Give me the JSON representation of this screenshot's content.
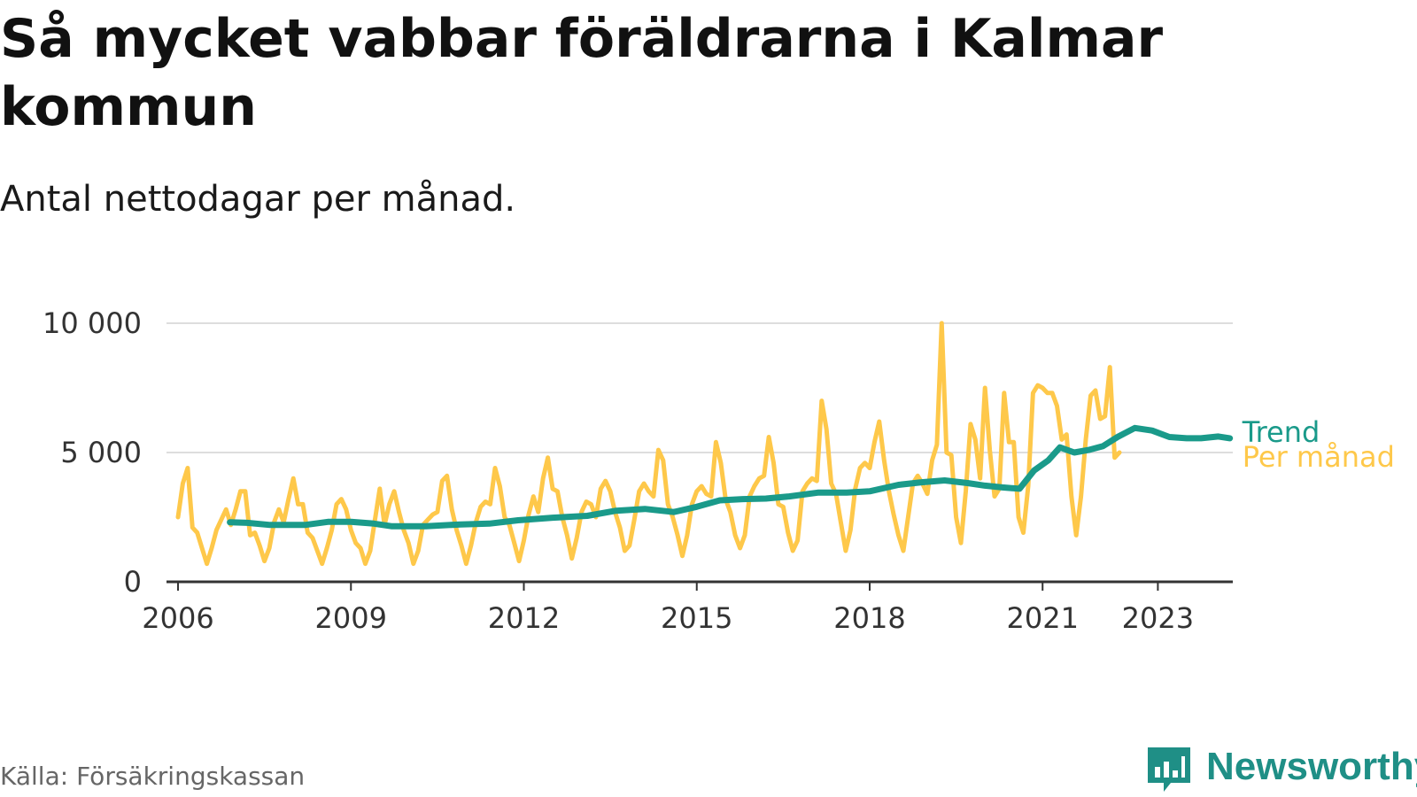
{
  "title": "Så mycket vabbar föräldrarna i Kalmar kommun",
  "subtitle": "Antal nettodagar per månad.",
  "source": "Källa: Försäkringskassan",
  "logo": "Newsworthy",
  "colors": {
    "per_month": "#fec84a",
    "trend": "#1a9a8a",
    "grid": "#dddddd",
    "axis": "#333333",
    "logo": "#1f8f86"
  },
  "chart_data": {
    "type": "line",
    "ylim": [
      0,
      10000
    ],
    "xlim": [
      2005.8,
      2024.3
    ],
    "grid": true,
    "y_ticks": [
      {
        "value": 0,
        "label": "0"
      },
      {
        "value": 5000,
        "label": "5 000"
      },
      {
        "value": 10000,
        "label": "10 000"
      }
    ],
    "x_ticks": [
      {
        "value": 2006,
        "label": "2006"
      },
      {
        "value": 2009,
        "label": "2009"
      },
      {
        "value": 2012,
        "label": "2012"
      },
      {
        "value": 2015,
        "label": "2015"
      },
      {
        "value": 2018,
        "label": "2018"
      },
      {
        "value": 2021,
        "label": "2021"
      },
      {
        "value": 2023,
        "label": "2023"
      }
    ],
    "series": [
      {
        "name": "Per månad",
        "color": "#fec84a",
        "start": "2006-01",
        "values": [
          2500,
          3800,
          4400,
          2100,
          1900,
          1300,
          700,
          1300,
          2000,
          2400,
          2800,
          2200,
          2800,
          3500,
          3500,
          1800,
          1900,
          1400,
          800,
          1300,
          2300,
          2800,
          2300,
          3200,
          4000,
          3000,
          3000,
          1900,
          1700,
          1200,
          700,
          1300,
          2000,
          3000,
          3200,
          2800,
          2000,
          1500,
          1300,
          700,
          1200,
          2400,
          3600,
          2200,
          3000,
          3500,
          2700,
          2000,
          1500,
          700,
          1200,
          2200,
          2400,
          2600,
          2700,
          3900,
          4100,
          2800,
          2000,
          1400,
          700,
          1400,
          2300,
          2900,
          3100,
          3000,
          4400,
          3700,
          2500,
          2200,
          1500,
          800,
          1600,
          2600,
          3300,
          2700,
          4000,
          4800,
          3600,
          3500,
          2500,
          1800,
          900,
          1700,
          2700,
          3100,
          3000,
          2500,
          3600,
          3900,
          3500,
          2700,
          2100,
          1200,
          1400,
          2400,
          3500,
          3800,
          3500,
          3300,
          5100,
          4700,
          3000,
          2500,
          1800,
          1000,
          1800,
          3000,
          3500,
          3700,
          3400,
          3300,
          5400,
          4600,
          3200,
          2700,
          1800,
          1300,
          1800,
          3300,
          3700,
          4000,
          4100,
          5600,
          4600,
          3000,
          2900,
          1900,
          1200,
          1600,
          3500,
          3800,
          4000,
          3900,
          7000,
          5900,
          3800,
          3400,
          2300,
          1200,
          2000,
          3600,
          4400,
          4600,
          4400,
          5400,
          6200,
          4700,
          3500,
          2600,
          1800,
          1200,
          2500,
          3800,
          4100,
          3800,
          3400,
          4700,
          5300,
          10000,
          5000,
          4900,
          2500,
          1500,
          3500,
          6100,
          5500,
          4000,
          7500,
          5100,
          3300,
          3600,
          7300,
          5400,
          5400,
          2500,
          1900,
          3700,
          7300,
          7600,
          7500,
          7300,
          7300,
          6800,
          5500,
          5700,
          3300,
          1800,
          3300,
          5500,
          7200,
          7400,
          6300,
          6400,
          8300,
          4800,
          5000
        ]
      },
      {
        "name": "Trend",
        "color": "#1a9a8a",
        "points": [
          [
            2006.9,
            2300
          ],
          [
            2007.2,
            2280
          ],
          [
            2007.6,
            2200
          ],
          [
            2008.2,
            2200
          ],
          [
            2008.6,
            2320
          ],
          [
            2009.0,
            2320
          ],
          [
            2009.4,
            2250
          ],
          [
            2009.7,
            2150
          ],
          [
            2010.3,
            2150
          ],
          [
            2010.9,
            2220
          ],
          [
            2011.4,
            2250
          ],
          [
            2011.9,
            2380
          ],
          [
            2012.5,
            2480
          ],
          [
            2013.1,
            2550
          ],
          [
            2013.6,
            2750
          ],
          [
            2014.1,
            2820
          ],
          [
            2014.6,
            2700
          ],
          [
            2015.0,
            2900
          ],
          [
            2015.4,
            3150
          ],
          [
            2015.8,
            3200
          ],
          [
            2016.2,
            3220
          ],
          [
            2016.6,
            3300
          ],
          [
            2017.1,
            3450
          ],
          [
            2017.6,
            3450
          ],
          [
            2018.0,
            3500
          ],
          [
            2018.5,
            3750
          ],
          [
            2018.9,
            3850
          ],
          [
            2019.3,
            3920
          ],
          [
            2019.7,
            3820
          ],
          [
            2020.0,
            3720
          ],
          [
            2020.3,
            3650
          ],
          [
            2020.6,
            3600
          ],
          [
            2020.85,
            4300
          ],
          [
            2021.1,
            4700
          ],
          [
            2021.3,
            5200
          ],
          [
            2021.55,
            5000
          ],
          [
            2021.8,
            5100
          ],
          [
            2022.05,
            5250
          ],
          [
            2022.3,
            5600
          ],
          [
            2022.6,
            5950
          ],
          [
            2022.9,
            5850
          ],
          [
            2023.2,
            5600
          ],
          [
            2023.5,
            5550
          ],
          [
            2023.75,
            5550
          ],
          [
            2024.05,
            5620
          ],
          [
            2024.25,
            5550
          ]
        ]
      }
    ]
  }
}
